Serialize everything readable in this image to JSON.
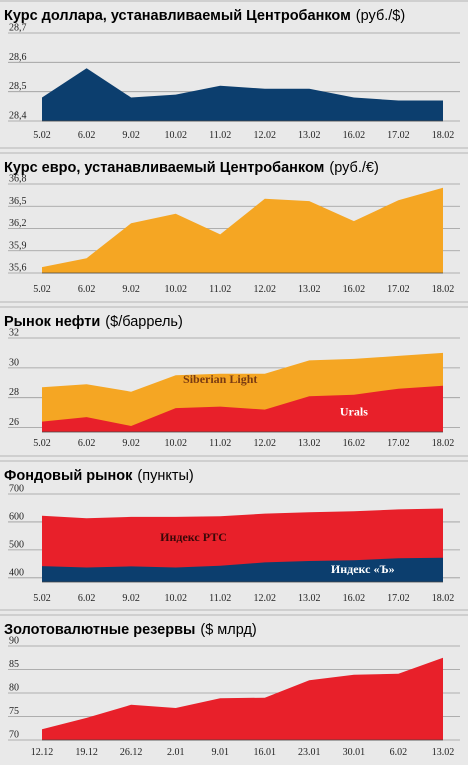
{
  "chart_data": [
    {
      "type": "area",
      "title": "Курс доллара, устанавливаемый Центробанком",
      "unit": "(руб./$)",
      "categories": [
        "5.02",
        "6.02",
        "9.02",
        "10.02",
        "11.02",
        "12.02",
        "13.02",
        "16.02",
        "17.02",
        "18.02"
      ],
      "series": [
        {
          "values": [
            28.48,
            28.58,
            28.48,
            28.49,
            28.52,
            28.51,
            28.51,
            28.48,
            28.47,
            28.47
          ],
          "color": "#0c3e6e"
        }
      ],
      "ylim": [
        28.4,
        28.7
      ],
      "yticks": [
        "28,7",
        "28,6",
        "28,5",
        "28,4"
      ],
      "ytick_values": [
        28.7,
        28.6,
        28.5,
        28.4
      ],
      "annotations": []
    },
    {
      "type": "area",
      "title": "Курс евро, устанавливаемый Центробанком",
      "unit": "(руб./€)",
      "categories": [
        "5.02",
        "6.02",
        "9.02",
        "10.02",
        "11.02",
        "12.02",
        "13.02",
        "16.02",
        "17.02",
        "18.02"
      ],
      "series": [
        {
          "values": [
            35.68,
            35.8,
            36.27,
            36.4,
            36.12,
            36.6,
            36.57,
            36.3,
            36.58,
            36.75
          ],
          "color": "#f5a623"
        }
      ],
      "ylim": [
        35.6,
        36.8
      ],
      "yticks": [
        "36,8",
        "36,5",
        "36,2",
        "35,9",
        "35,6"
      ],
      "ytick_values": [
        36.8,
        36.5,
        36.2,
        35.9,
        35.6
      ],
      "annotations": []
    },
    {
      "type": "area",
      "title": "Рынок нефти",
      "unit": "($/баррель)",
      "categories": [
        "5.02",
        "6.02",
        "9.02",
        "10.02",
        "11.02",
        "12.02",
        "13.02",
        "16.02",
        "17.02",
        "18.02"
      ],
      "series": [
        {
          "name": "Siberian Light",
          "values": [
            28.7,
            28.9,
            28.4,
            29.5,
            29.6,
            29.6,
            30.5,
            30.6,
            30.8,
            31.0
          ],
          "color": "#f5a623"
        },
        {
          "name": "Urals",
          "values": [
            26.4,
            26.7,
            26.1,
            27.3,
            27.4,
            27.2,
            28.1,
            28.2,
            28.6,
            28.8
          ],
          "color": "#e8202a"
        }
      ],
      "ylim": [
        25.7,
        32
      ],
      "yticks": [
        "32",
        "30",
        "28",
        "26"
      ],
      "ytick_values": [
        32,
        30,
        28,
        26
      ],
      "annotations": [
        {
          "text": "Siberian Light",
          "color": "#7a3b12",
          "x": 4,
          "y": 29.0
        },
        {
          "text": "Urals",
          "color": "#ffffff",
          "x": 7,
          "y": 26.8
        }
      ]
    },
    {
      "type": "area",
      "title": "Фондовый рынок",
      "unit": "(пункты)",
      "categories": [
        "5.02",
        "6.02",
        "9.02",
        "10.02",
        "11.02",
        "12.02",
        "13.02",
        "16.02",
        "17.02",
        "18.02"
      ],
      "series": [
        {
          "name": "Индекс РТС",
          "values": [
            622,
            613,
            618,
            618,
            620,
            630,
            635,
            638,
            645,
            648
          ],
          "color": "#e8202a"
        },
        {
          "name": "Индекс «Ъ»",
          "values": [
            442,
            437,
            441,
            437,
            443,
            455,
            460,
            463,
            470,
            472
          ],
          "color": "#0c3e6e"
        }
      ],
      "ylim": [
        385,
        700
      ],
      "yticks": [
        "700",
        "600",
        "500",
        "400"
      ],
      "ytick_values": [
        700,
        600,
        500,
        400
      ],
      "annotations": [
        {
          "text": "Индекс РТС",
          "color": "#3a0808",
          "x": 3.4,
          "y": 532
        },
        {
          "text": "Индекс «Ъ»",
          "color": "#ffffff",
          "x": 7.2,
          "y": 418
        }
      ]
    },
    {
      "type": "area",
      "title": "Золотовалютные резервы",
      "unit": "($ млрд)",
      "categories": [
        "12.12",
        "19.12",
        "26.12",
        "2.01",
        "9.01",
        "16.01",
        "23.01",
        "30.01",
        "6.02",
        "13.02"
      ],
      "series": [
        {
          "values": [
            72.3,
            74.7,
            77.5,
            76.8,
            78.9,
            79.0,
            82.7,
            83.9,
            84.1,
            87.5
          ],
          "color": "#e8202a"
        }
      ],
      "ylim": [
        70,
        90
      ],
      "yticks": [
        "90",
        "85",
        "80",
        "75",
        "70"
      ],
      "ytick_values": [
        90,
        85,
        80,
        75,
        70
      ],
      "annotations": []
    }
  ]
}
